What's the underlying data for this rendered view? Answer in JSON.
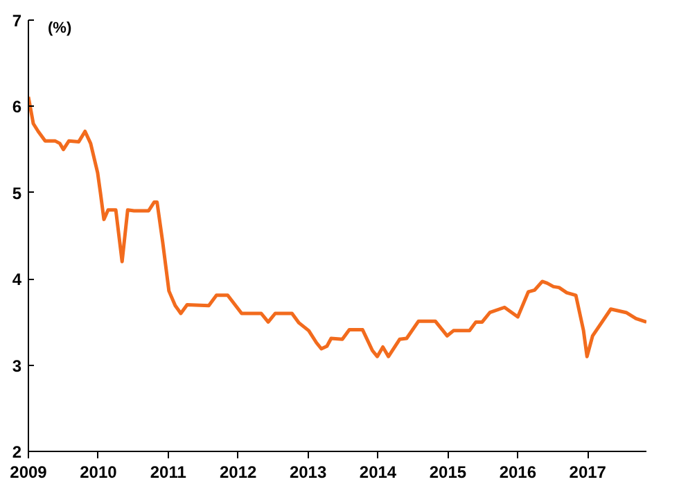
{
  "chart_data": {
    "type": "line",
    "ylabel": "(%)",
    "xlim": [
      2009,
      2017.84
    ],
    "xticks": [
      2009,
      2010,
      2011,
      2012,
      2013,
      2014,
      2015,
      2016,
      2017
    ],
    "ylim": [
      2,
      7
    ],
    "yticks": [
      2,
      3,
      4,
      5,
      6,
      7
    ],
    "grid": false,
    "marker": "none",
    "line_style": "solid",
    "series": [
      {
        "color": "#f26b1d",
        "x": [
          2009.0,
          2009.07,
          2009.14,
          2009.24,
          2009.38,
          2009.45,
          2009.5,
          2009.58,
          2009.72,
          2009.81,
          2009.89,
          2009.99,
          2010.03,
          2010.08,
          2010.14,
          2010.25,
          2010.34,
          2010.42,
          2010.51,
          2010.72,
          2010.8,
          2010.84,
          2010.92,
          2011.01,
          2011.1,
          2011.18,
          2011.27,
          2011.58,
          2011.69,
          2011.85,
          2012.05,
          2012.33,
          2012.43,
          2012.53,
          2012.77,
          2012.87,
          2013.01,
          2013.12,
          2013.19,
          2013.27,
          2013.33,
          2013.49,
          2013.59,
          2013.78,
          2013.92,
          2013.99,
          2014.07,
          2014.15,
          2014.31,
          2014.41,
          2014.58,
          2014.82,
          2014.99,
          2015.08,
          2015.31,
          2015.4,
          2015.49,
          2015.6,
          2015.81,
          2016.0,
          2016.15,
          2016.24,
          2016.35,
          2016.42,
          2016.51,
          2016.59,
          2016.7,
          2016.83,
          2016.94,
          2016.99,
          2017.07,
          2017.33,
          2017.55,
          2017.69,
          2017.84
        ],
        "values": [
          6.11,
          5.8,
          5.71,
          5.6,
          5.6,
          5.57,
          5.5,
          5.6,
          5.59,
          5.71,
          5.57,
          5.23,
          5.0,
          4.69,
          4.8,
          4.8,
          4.2,
          4.8,
          4.79,
          4.79,
          4.89,
          4.89,
          4.43,
          3.86,
          3.69,
          3.6,
          3.7,
          3.69,
          3.81,
          3.81,
          3.6,
          3.6,
          3.5,
          3.6,
          3.6,
          3.49,
          3.4,
          3.26,
          3.19,
          3.22,
          3.31,
          3.3,
          3.41,
          3.41,
          3.17,
          3.1,
          3.21,
          3.1,
          3.3,
          3.31,
          3.51,
          3.51,
          3.34,
          3.4,
          3.4,
          3.5,
          3.5,
          3.61,
          3.67,
          3.56,
          3.85,
          3.87,
          3.97,
          3.95,
          3.91,
          3.9,
          3.84,
          3.81,
          3.4,
          3.1,
          3.34,
          3.65,
          3.61,
          3.54,
          3.5
        ]
      }
    ]
  }
}
